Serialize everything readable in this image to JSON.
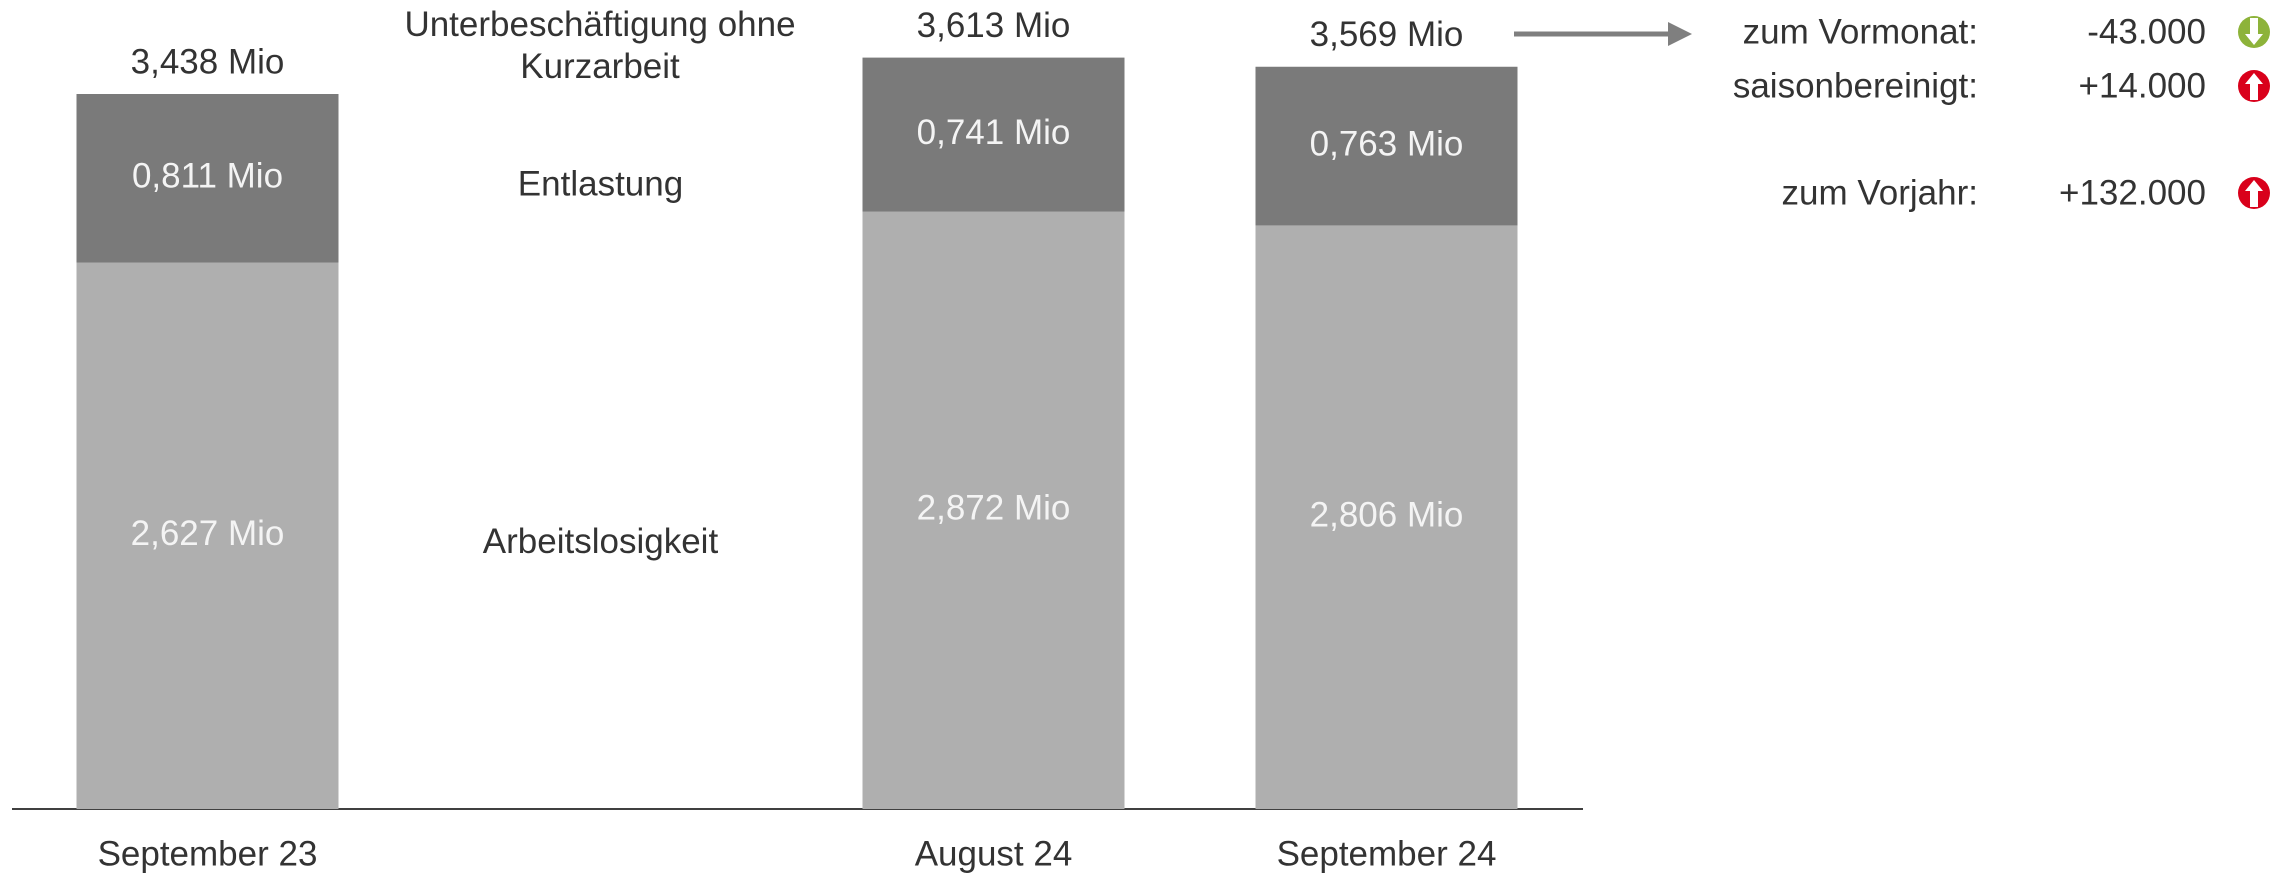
{
  "chart_data": {
    "type": "bar",
    "stacked": true,
    "categories": [
      "September 23",
      null,
      "August 24",
      "September 24"
    ],
    "series": [
      {
        "name": "Arbeitslosigkeit",
        "color": "#afafaf",
        "values": [
          2.627,
          null,
          2.872,
          2.806
        ],
        "value_labels": [
          "2,627 Mio",
          null,
          "2,872 Mio",
          "2,806 Mio"
        ]
      },
      {
        "name": "Entlastung",
        "color": "#7a7a7a",
        "values": [
          0.811,
          null,
          0.741,
          0.763
        ],
        "value_labels": [
          "0,811 Mio",
          null,
          "0,741 Mio",
          "0,763 Mio"
        ]
      }
    ],
    "totals": {
      "name": "Unterbeschäftigung ohne Kurzarbeit",
      "values": [
        3.438,
        null,
        3.613,
        3.569
      ],
      "value_labels": [
        "3,438 Mio",
        null,
        "3,613 Mio",
        "3,569 Mio"
      ]
    },
    "ylim": [
      0,
      3.89
    ]
  },
  "changes": [
    {
      "label": "zum Vormonat:",
      "value": "-43.000",
      "direction": "down",
      "color": "#8db33a"
    },
    {
      "label": "saisonbereinigt:",
      "value": "+14.000",
      "direction": "up",
      "color": "#d9001b"
    },
    {
      "label": "zum Vorjahr:",
      "value": "+132.000",
      "direction": "up",
      "color": "#d9001b"
    }
  ]
}
